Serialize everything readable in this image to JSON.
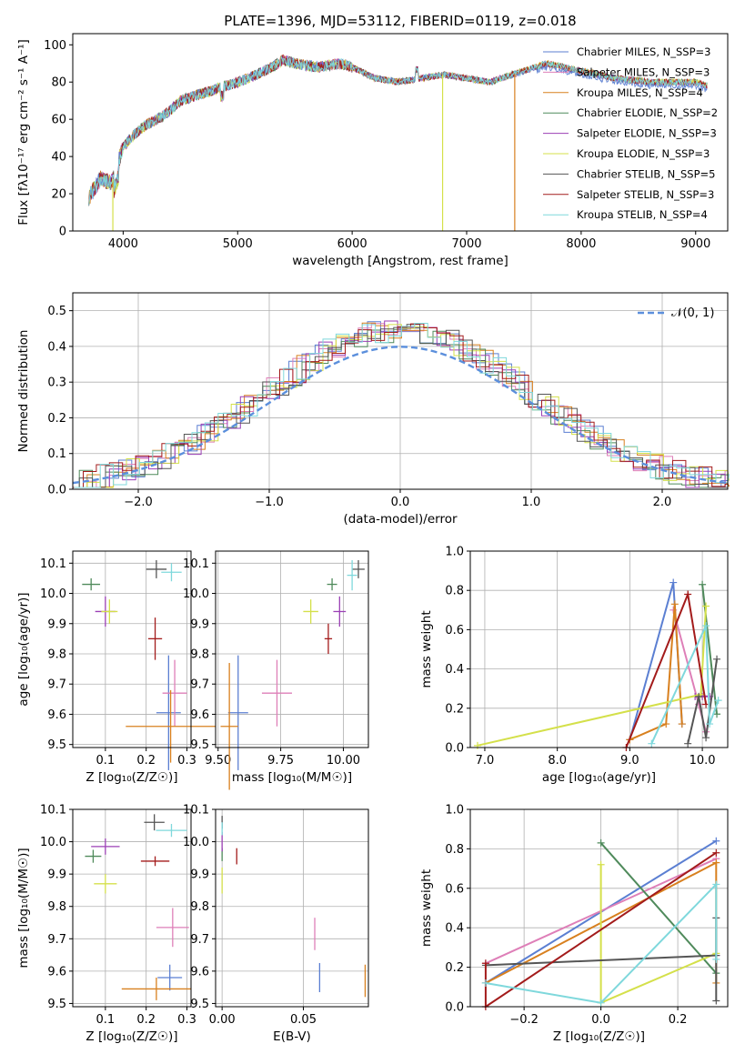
{
  "chart_data": [
    {
      "type": "line",
      "title": "PLATE=1396, MJD=53112, FIBERID=0119, z=0.018",
      "xlabel": "wavelength [Angstrom, rest frame]",
      "ylabel": "Flux [fλ10⁻¹⁷ erg cm⁻² s⁻¹ A⁻¹]",
      "xlim": [
        3560,
        9280
      ],
      "ylim": [
        0,
        106
      ],
      "xticks": [
        4000,
        5000,
        6000,
        7000,
        8000,
        9000
      ],
      "yticks": [
        0,
        20,
        40,
        60,
        80,
        100
      ],
      "grid": false,
      "legend_position": "top-right",
      "series": [
        {
          "name": "Chabrier MILES, N_SSP=3",
          "color": "#5b7fd2"
        },
        {
          "name": "Salpeter MILES, N_SSP=3",
          "color": "#de7fb8"
        },
        {
          "name": "Kroupa MILES, N_SSP=4",
          "color": "#d8801f"
        },
        {
          "name": "Chabrier ELODIE, N_SSP=2",
          "color": "#4f8a5b"
        },
        {
          "name": "Salpeter ELODIE, N_SSP=3",
          "color": "#9b3fb5"
        },
        {
          "name": "Kroupa ELODIE, N_SSP=3",
          "color": "#d4e04a"
        },
        {
          "name": "Chabrier STELIB, N_SSP=5",
          "color": "#555555"
        },
        {
          "name": "Salpeter STELIB, N_SSP=3",
          "color": "#a31b1b"
        },
        {
          "name": "Kroupa STELIB, N_SSP=4",
          "color": "#7fd8dc"
        }
      ],
      "continuum": [
        [
          3700,
          18
        ],
        [
          3800,
          28
        ],
        [
          3900,
          26
        ],
        [
          4000,
          45
        ],
        [
          4100,
          52
        ],
        [
          4200,
          57
        ],
        [
          4300,
          60
        ],
        [
          4400,
          64
        ],
        [
          4500,
          70
        ],
        [
          4700,
          74
        ],
        [
          4900,
          78
        ],
        [
          5100,
          82
        ],
        [
          5300,
          88
        ],
        [
          5400,
          92
        ],
        [
          5500,
          90
        ],
        [
          5700,
          88
        ],
        [
          5900,
          90
        ],
        [
          6000,
          88
        ],
        [
          6200,
          82
        ],
        [
          6400,
          80
        ],
        [
          6600,
          82
        ],
        [
          6800,
          84
        ],
        [
          7000,
          82
        ],
        [
          7200,
          80
        ],
        [
          7500,
          86
        ],
        [
          7700,
          90
        ],
        [
          8000,
          86
        ],
        [
          8300,
          82
        ],
        [
          8600,
          80
        ],
        [
          9000,
          80
        ],
        [
          9100,
          78
        ]
      ],
      "drops": [
        {
          "x": 3910,
          "color": "#d4e04a"
        },
        {
          "x": 6790,
          "color": "#d4e04a"
        },
        {
          "x": 7420,
          "color": "#d8801f"
        }
      ]
    },
    {
      "type": "histogram",
      "xlabel": "(data-model)/error",
      "ylabel": "Normed distribution",
      "xlim": [
        -2.5,
        2.5
      ],
      "ylim": [
        0,
        0.55
      ],
      "xticks": [
        -2,
        -1,
        0,
        1,
        2
      ],
      "yticks": [
        0.0,
        0.1,
        0.2,
        0.3,
        0.4,
        0.5
      ],
      "grid": true,
      "legend": [
        {
          "label": "𝒩(0, 1)",
          "style": "dashed",
          "color": "#5b8fdc"
        }
      ],
      "legend_position": "top-right",
      "bin_width": 0.1,
      "reference_curve": "gaussian(0,1)"
    },
    {
      "type": "scatter",
      "xlabel": "Z [log₁₀(Z/Z☉)]",
      "ylabel": "age  [log₁₀(age/yr)]",
      "xlim": [
        0.02,
        0.31
      ],
      "ylim": [
        9.49,
        10.14
      ],
      "xticks": [
        0.1,
        0.2,
        0.3
      ],
      "yticks": [
        9.5,
        9.6,
        9.7,
        9.8,
        9.9,
        10.0,
        10.1
      ],
      "points": [
        {
          "x": 0.255,
          "y": 9.605,
          "xerr": 0.03,
          "yerr": 0.19,
          "color": "#5b7fd2"
        },
        {
          "x": 0.27,
          "y": 9.67,
          "xerr": 0.03,
          "yerr": 0.11,
          "color": "#de7fb8"
        },
        {
          "x": 0.26,
          "y": 9.56,
          "xerr": 0.11,
          "yerr": 0.12,
          "color": "#d8801f"
        },
        {
          "x": 0.065,
          "y": 10.03,
          "xerr": 0.022,
          "yerr": 0.02,
          "color": "#4f8a5b"
        },
        {
          "x": 0.1,
          "y": 9.94,
          "xerr": 0.025,
          "yerr": 0.05,
          "color": "#9b3fb5"
        },
        {
          "x": 0.11,
          "y": 9.94,
          "xerr": 0.02,
          "yerr": 0.04,
          "color": "#d4e04a"
        },
        {
          "x": 0.225,
          "y": 10.08,
          "xerr": 0.025,
          "yerr": 0.03,
          "color": "#555555"
        },
        {
          "x": 0.222,
          "y": 9.85,
          "xerr": 0.017,
          "yerr": 0.07,
          "color": "#a31b1b"
        },
        {
          "x": 0.262,
          "y": 10.07,
          "xerr": 0.025,
          "yerr": 0.03,
          "color": "#7fd8dc"
        }
      ]
    },
    {
      "type": "scatter",
      "xlabel": "mass [log₁₀(M/M☉)]",
      "ylabel": "",
      "xlim": [
        9.49,
        10.1
      ],
      "ylim": [
        9.49,
        10.14
      ],
      "xticks": [
        9.5,
        9.75,
        10.0
      ],
      "xticklabels": [
        "9.50",
        "9.75",
        "10.00"
      ],
      "yticks": [
        9.5,
        9.6,
        9.7,
        9.8,
        9.9,
        10.0,
        10.1
      ],
      "points": [
        {
          "x": 9.58,
          "y": 9.605,
          "xerr": 0.04,
          "yerr": 0.19,
          "color": "#5b7fd2"
        },
        {
          "x": 9.735,
          "y": 9.67,
          "xerr": 0.06,
          "yerr": 0.11,
          "color": "#de7fb8"
        },
        {
          "x": 9.545,
          "y": 9.56,
          "xerr": 0.035,
          "yerr": 0.21,
          "color": "#d8801f"
        },
        {
          "x": 9.955,
          "y": 10.03,
          "xerr": 0.02,
          "yerr": 0.02,
          "color": "#4f8a5b"
        },
        {
          "x": 9.985,
          "y": 9.94,
          "xerr": 0.025,
          "yerr": 0.05,
          "color": "#9b3fb5"
        },
        {
          "x": 9.87,
          "y": 9.94,
          "xerr": 0.03,
          "yerr": 0.04,
          "color": "#d4e04a"
        },
        {
          "x": 10.06,
          "y": 10.08,
          "xerr": 0.025,
          "yerr": 0.03,
          "color": "#555555"
        },
        {
          "x": 9.94,
          "y": 9.85,
          "xerr": 0.015,
          "yerr": 0.05,
          "color": "#a31b1b"
        },
        {
          "x": 10.035,
          "y": 10.06,
          "xerr": 0.02,
          "yerr": 0.05,
          "color": "#7fd8dc"
        }
      ]
    },
    {
      "type": "line",
      "xlabel": "age  [log₁₀(age/yr)]",
      "ylabel": "mass weight",
      "xlim": [
        6.8,
        10.35
      ],
      "ylim": [
        0,
        1
      ],
      "xticks": [
        7,
        8,
        9,
        10
      ],
      "yticks": [
        0.0,
        0.2,
        0.4,
        0.6,
        0.8,
        1.0
      ],
      "series": [
        {
          "color": "#5b7fd2",
          "x": [
            9.0,
            9.6,
            9.72
          ],
          "y": [
            0.04,
            0.84,
            0.12
          ]
        },
        {
          "color": "#de7fb8",
          "x": [
            9.6,
            9.95,
            10.05
          ],
          "y": [
            0.7,
            0.22,
            0.08
          ]
        },
        {
          "color": "#d8801f",
          "x": [
            9.0,
            9.5,
            9.62,
            9.72
          ],
          "y": [
            0.04,
            0.12,
            0.73,
            0.12
          ]
        },
        {
          "color": "#4f8a5b",
          "x": [
            10.0,
            10.2
          ],
          "y": [
            0.83,
            0.17
          ]
        },
        {
          "color": "#9b3fb5",
          "x": [
            9.9,
            10.0,
            10.1
          ],
          "y": [
            0.26,
            0.26,
            0.26
          ]
        },
        {
          "color": "#d4e04a",
          "x": [
            6.9,
            9.98,
            10.05
          ],
          "y": [
            0.01,
            0.27,
            0.72
          ]
        },
        {
          "color": "#555555",
          "x": [
            9.8,
            9.95,
            10.05,
            10.2
          ],
          "y": [
            0.02,
            0.26,
            0.05,
            0.45
          ]
        },
        {
          "color": "#a31b1b",
          "x": [
            8.95,
            9.8,
            10.05
          ],
          "y": [
            0.0,
            0.78,
            0.22
          ]
        },
        {
          "color": "#7fd8dc",
          "x": [
            9.3,
            10.05,
            10.1,
            10.22
          ],
          "y": [
            0.02,
            0.62,
            0.12,
            0.24
          ]
        }
      ]
    },
    {
      "type": "scatter",
      "xlabel": "Z [log₁₀(Z/Z☉)]",
      "ylabel": "mass [log₁₀(M/M☉)]",
      "xlim": [
        0.02,
        0.31
      ],
      "ylim": [
        9.49,
        10.1
      ],
      "xticks": [
        0.1,
        0.2,
        0.3
      ],
      "yticks": [
        9.5,
        9.6,
        9.7,
        9.8,
        9.9,
        10.0,
        10.1
      ],
      "points": [
        {
          "x": 0.258,
          "y": 9.58,
          "xerr": 0.03,
          "yerr": 0.04,
          "color": "#5b7fd2"
        },
        {
          "x": 0.265,
          "y": 9.735,
          "xerr": 0.04,
          "yerr": 0.06,
          "color": "#de7fb8"
        },
        {
          "x": 0.225,
          "y": 9.545,
          "xerr": 0.085,
          "yerr": 0.035,
          "color": "#d8801f"
        },
        {
          "x": 0.07,
          "y": 9.955,
          "xerr": 0.02,
          "yerr": 0.02,
          "color": "#4f8a5b"
        },
        {
          "x": 0.1,
          "y": 9.985,
          "xerr": 0.035,
          "yerr": 0.025,
          "color": "#9b3fb5"
        },
        {
          "x": 0.1,
          "y": 9.87,
          "xerr": 0.028,
          "yerr": 0.03,
          "color": "#d4e04a"
        },
        {
          "x": 0.22,
          "y": 10.06,
          "xerr": 0.025,
          "yerr": 0.025,
          "color": "#555555"
        },
        {
          "x": 0.222,
          "y": 9.94,
          "xerr": 0.035,
          "yerr": 0.015,
          "color": "#a31b1b"
        },
        {
          "x": 0.262,
          "y": 10.035,
          "xerr": 0.038,
          "yerr": 0.02,
          "color": "#7fd8dc"
        }
      ]
    },
    {
      "type": "scatter",
      "xlabel": "E(B-V)",
      "ylabel": "",
      "xlim": [
        -0.004,
        0.09
      ],
      "ylim": [
        9.49,
        10.1
      ],
      "xticks": [
        0.0,
        0.05
      ],
      "xticklabels": [
        "0.00",
        "0.05"
      ],
      "yticks": [
        9.5,
        9.6,
        9.7,
        9.8,
        9.9,
        10.0,
        10.1
      ],
      "points": [
        {
          "x": 0.06,
          "y": 9.58,
          "yerr": 0.045,
          "color": "#5b7fd2"
        },
        {
          "x": 0.057,
          "y": 9.715,
          "yerr": 0.05,
          "color": "#de7fb8"
        },
        {
          "x": 0.088,
          "y": 9.57,
          "yerr": 0.05,
          "color": "#d8801f"
        },
        {
          "x": 0.0,
          "y": 9.96,
          "yerr": 0.02,
          "color": "#4f8a5b"
        },
        {
          "x": 0.0,
          "y": 10.0,
          "yerr": 0.03,
          "color": "#9b3fb5"
        },
        {
          "x": 0.0,
          "y": 9.88,
          "yerr": 0.04,
          "color": "#d4e04a"
        },
        {
          "x": 0.0,
          "y": 10.06,
          "yerr": 0.02,
          "color": "#555555"
        },
        {
          "x": 0.009,
          "y": 9.955,
          "yerr": 0.025,
          "color": "#a31b1b"
        },
        {
          "x": 0.0,
          "y": 10.04,
          "yerr": 0.02,
          "color": "#7fd8dc"
        }
      ]
    },
    {
      "type": "line",
      "xlabel": "Z [log₁₀(Z/Z☉)]",
      "ylabel": "mass weight",
      "xlim": [
        -0.34,
        0.33
      ],
      "ylim": [
        0,
        1
      ],
      "xticks": [
        -0.2,
        0.0,
        0.2
      ],
      "xticklabels": [
        "−0.2",
        "0.0",
        "0.2"
      ],
      "yticks": [
        0.0,
        0.2,
        0.4,
        0.6,
        0.8,
        1.0
      ],
      "series": [
        {
          "color": "#5b7fd2",
          "x": [
            -0.3,
            0.3
          ],
          "y": [
            0.12,
            0.84
          ]
        },
        {
          "color": "#de7fb8",
          "x": [
            -0.3,
            0.3
          ],
          "y": [
            0.22,
            0.75
          ]
        },
        {
          "color": "#d8801f",
          "x": [
            -0.3,
            0.3,
            0.3
          ],
          "y": [
            0.12,
            0.73,
            0.12
          ]
        },
        {
          "color": "#4f8a5b",
          "x": [
            0.0,
            0.3
          ],
          "y": [
            0.83,
            0.17
          ]
        },
        {
          "color": "#9b3fb5",
          "x": [
            0.3,
            0.3
          ],
          "y": [
            0.26,
            0.26
          ]
        },
        {
          "color": "#d4e04a",
          "x": [
            0.0,
            0.0,
            0.3
          ],
          "y": [
            0.72,
            0.02,
            0.27
          ]
        },
        {
          "color": "#555555",
          "x": [
            -0.3,
            0.3,
            0.3,
            0.3
          ],
          "y": [
            0.21,
            0.26,
            0.45,
            0.03
          ]
        },
        {
          "color": "#a31b1b",
          "x": [
            -0.3,
            -0.3,
            0.3
          ],
          "y": [
            0.22,
            0.0,
            0.78
          ]
        },
        {
          "color": "#7fd8dc",
          "x": [
            -0.3,
            0.0,
            0.3,
            0.3
          ],
          "y": [
            0.12,
            0.02,
            0.62,
            0.24
          ]
        }
      ]
    }
  ]
}
